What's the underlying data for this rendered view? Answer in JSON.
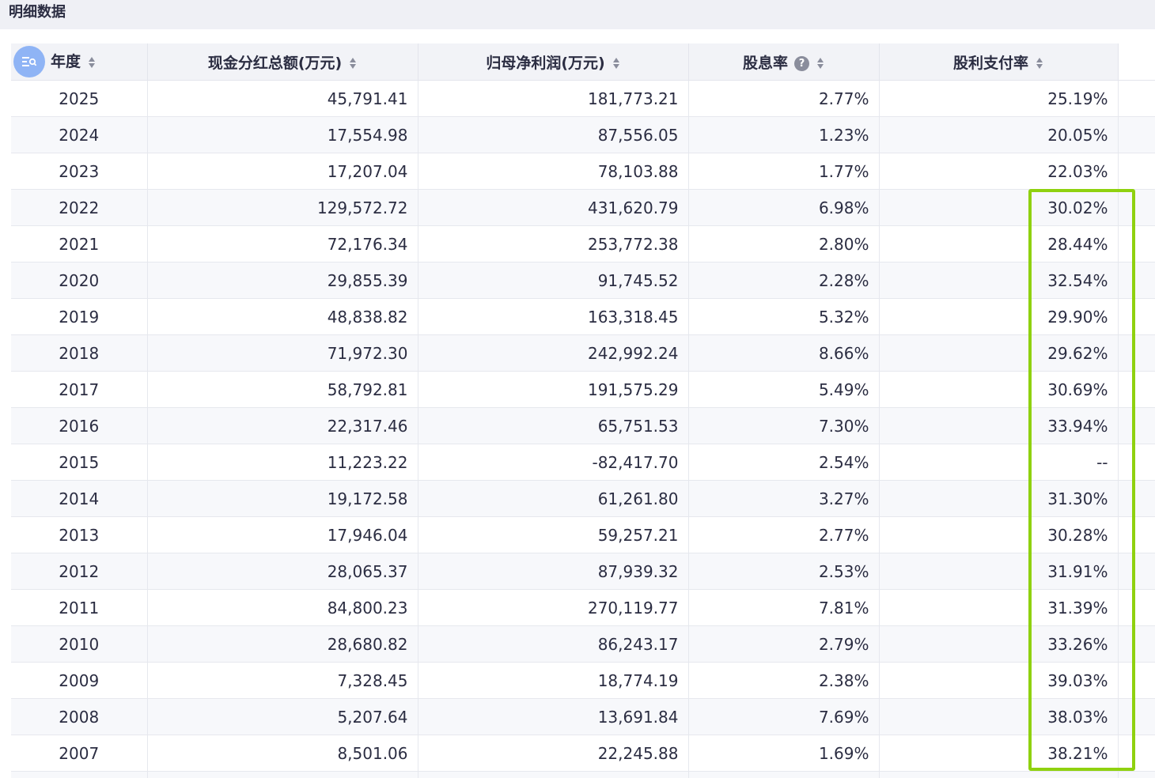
{
  "title": "明细数据",
  "colors": {
    "highlight": "#8fd10f",
    "header_bg": "#f2f3f7",
    "filter_button": "#8fb4f5"
  },
  "table": {
    "headers": {
      "year": "年度",
      "cash_dividend": "现金分红总额(万元)",
      "net_profit": "归母净利润(万元)",
      "dividend_yield": "股息率",
      "payout_ratio": "股利支付率"
    },
    "help_icon_glyph": "?",
    "rows": [
      {
        "year": "2025",
        "cash_dividend": "45,791.41",
        "net_profit": "181,773.21",
        "dividend_yield": "2.77%",
        "payout_ratio": "25.19%"
      },
      {
        "year": "2024",
        "cash_dividend": "17,554.98",
        "net_profit": "87,556.05",
        "dividend_yield": "1.23%",
        "payout_ratio": "20.05%"
      },
      {
        "year": "2023",
        "cash_dividend": "17,207.04",
        "net_profit": "78,103.88",
        "dividend_yield": "1.77%",
        "payout_ratio": "22.03%"
      },
      {
        "year": "2022",
        "cash_dividend": "129,572.72",
        "net_profit": "431,620.79",
        "dividend_yield": "6.98%",
        "payout_ratio": "30.02%"
      },
      {
        "year": "2021",
        "cash_dividend": "72,176.34",
        "net_profit": "253,772.38",
        "dividend_yield": "2.80%",
        "payout_ratio": "28.44%"
      },
      {
        "year": "2020",
        "cash_dividend": "29,855.39",
        "net_profit": "91,745.52",
        "dividend_yield": "2.28%",
        "payout_ratio": "32.54%"
      },
      {
        "year": "2019",
        "cash_dividend": "48,838.82",
        "net_profit": "163,318.45",
        "dividend_yield": "5.32%",
        "payout_ratio": "29.90%"
      },
      {
        "year": "2018",
        "cash_dividend": "71,972.30",
        "net_profit": "242,992.24",
        "dividend_yield": "8.66%",
        "payout_ratio": "29.62%"
      },
      {
        "year": "2017",
        "cash_dividend": "58,792.81",
        "net_profit": "191,575.29",
        "dividend_yield": "5.49%",
        "payout_ratio": "30.69%"
      },
      {
        "year": "2016",
        "cash_dividend": "22,317.46",
        "net_profit": "65,751.53",
        "dividend_yield": "7.30%",
        "payout_ratio": "33.94%"
      },
      {
        "year": "2015",
        "cash_dividend": "11,223.22",
        "net_profit": "-82,417.70",
        "dividend_yield": "2.54%",
        "payout_ratio": "--"
      },
      {
        "year": "2014",
        "cash_dividend": "19,172.58",
        "net_profit": "61,261.80",
        "dividend_yield": "3.27%",
        "payout_ratio": "31.30%"
      },
      {
        "year": "2013",
        "cash_dividend": "17,946.04",
        "net_profit": "59,257.21",
        "dividend_yield": "2.77%",
        "payout_ratio": "30.28%"
      },
      {
        "year": "2012",
        "cash_dividend": "28,065.37",
        "net_profit": "87,939.32",
        "dividend_yield": "2.53%",
        "payout_ratio": "31.91%"
      },
      {
        "year": "2011",
        "cash_dividend": "84,800.23",
        "net_profit": "270,119.77",
        "dividend_yield": "7.81%",
        "payout_ratio": "31.39%"
      },
      {
        "year": "2010",
        "cash_dividend": "28,680.82",
        "net_profit": "86,243.17",
        "dividend_yield": "2.79%",
        "payout_ratio": "33.26%"
      },
      {
        "year": "2009",
        "cash_dividend": "7,328.45",
        "net_profit": "18,774.19",
        "dividend_yield": "2.38%",
        "payout_ratio": "39.03%"
      },
      {
        "year": "2008",
        "cash_dividend": "5,207.64",
        "net_profit": "13,691.84",
        "dividend_yield": "7.69%",
        "payout_ratio": "38.03%"
      },
      {
        "year": "2007",
        "cash_dividend": "8,501.06",
        "net_profit": "22,245.88",
        "dividend_yield": "1.69%",
        "payout_ratio": "38.21%"
      },
      {
        "year": "",
        "cash_dividend": "",
        "net_profit": "",
        "dividend_yield": "",
        "payout_ratio": ""
      }
    ]
  }
}
